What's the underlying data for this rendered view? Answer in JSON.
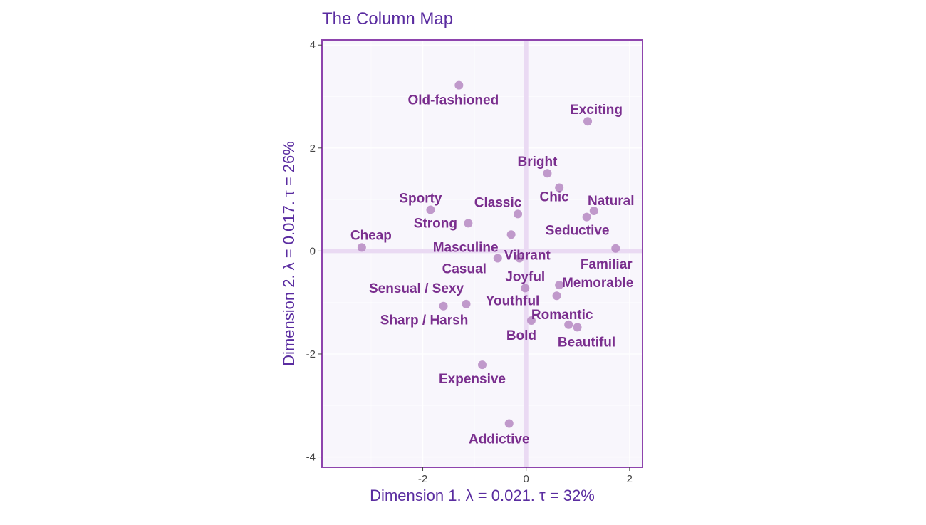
{
  "chart_data": {
    "type": "scatter",
    "title": "The Column Map",
    "xlabel": "Dimension 1.  λ = 0.021.  τ = 32%",
    "ylabel": "Dimension 2.  λ = 0.017.  τ = 26%",
    "xlim": [
      -3.95,
      2.25
    ],
    "ylim": [
      -4.2,
      4.1
    ],
    "x_ticks": [
      -2,
      0,
      2
    ],
    "y_ticks": [
      -4,
      -2,
      0,
      2,
      4
    ],
    "grid": true,
    "colors": {
      "panel_background": "#f8f6fc",
      "panel_border": "#8e44ad",
      "grid_major": "#ffffff",
      "zero_lines": "#eadaf3",
      "points": "#b688c2",
      "labels": "#7a2e8e",
      "title": "#5a2ca0"
    },
    "points": [
      {
        "label": "Old-fashioned",
        "x": -1.3,
        "y": 3.22
      },
      {
        "label": "Exciting",
        "x": 1.19,
        "y": 2.52
      },
      {
        "label": "Bright",
        "x": 0.41,
        "y": 1.51
      },
      {
        "label": "Sporty",
        "x": -1.85,
        "y": 0.8
      },
      {
        "label": "Classic",
        "x": -0.16,
        "y": 0.72
      },
      {
        "label": "Natural",
        "x": 1.31,
        "y": 0.78
      },
      {
        "label": "Chic",
        "x": 0.64,
        "y": 1.23
      },
      {
        "label": "Strong",
        "x": -1.12,
        "y": 0.54
      },
      {
        "label": "Seductive",
        "x": 1.17,
        "y": 0.66
      },
      {
        "label": "Cheap",
        "x": -3.18,
        "y": 0.07
      },
      {
        "label": "Masculine",
        "x": -0.29,
        "y": 0.32
      },
      {
        "label": "Vibrant",
        "x": -0.13,
        "y": -0.14
      },
      {
        "label": "Familiar",
        "x": 1.73,
        "y": 0.05
      },
      {
        "label": "Casual",
        "x": -0.55,
        "y": -0.14
      },
      {
        "label": "Joyful",
        "x": -0.02,
        "y": -0.72
      },
      {
        "label": "Memorable",
        "x": 0.64,
        "y": -0.66
      },
      {
        "label": "Sensual / Sexy",
        "x": -1.16,
        "y": -1.03
      },
      {
        "label": "Sharp / Harsh",
        "x": -1.6,
        "y": -1.07
      },
      {
        "label": "Youthful",
        "x": 0.59,
        "y": -0.87
      },
      {
        "label": "Romantic",
        "x": 0.82,
        "y": -1.43
      },
      {
        "label": "Bold",
        "x": 0.1,
        "y": -1.35
      },
      {
        "label": "Beautiful",
        "x": 0.99,
        "y": -1.48
      },
      {
        "label": "Expensive",
        "x": -0.85,
        "y": -2.21
      },
      {
        "label": "Addictive",
        "x": -0.33,
        "y": -3.35
      }
    ]
  }
}
